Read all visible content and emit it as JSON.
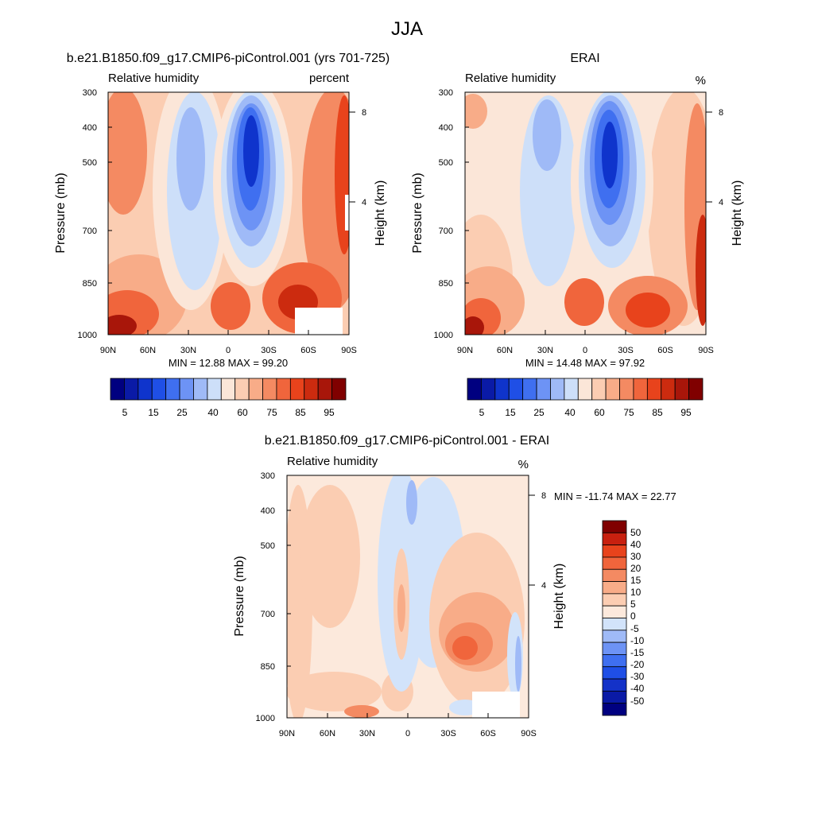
{
  "figure": {
    "title": "JJA"
  },
  "colors": {
    "abs_levels": [
      "#000080",
      "#0a1aa6",
      "#0f34cc",
      "#1f4fe6",
      "#3f6ff0",
      "#6d93f5",
      "#9fbaf7",
      "#cddff9",
      "#fbe6d8",
      "#fbcdb2",
      "#f8ac88",
      "#f48a62",
      "#f0653c",
      "#e8431c",
      "#cc2b0f",
      "#a8160a",
      "#800000"
    ],
    "diff_levels": [
      "#000080",
      "#0a1aa6",
      "#1432c8",
      "#1f4fe6",
      "#3f6ff0",
      "#6d93f5",
      "#9fbaf7",
      "#d2e3fa",
      "#fce9dc",
      "#fbcdb2",
      "#f8ac88",
      "#f48a62",
      "#f0653c",
      "#e8431c",
      "#c8200f",
      "#800000"
    ]
  },
  "chart_data": [
    {
      "type": "heatmap",
      "title": "b.e21.B1850.f09_g17.CMIP6-piControl.001 (yrs 701-725)",
      "subtitle_left": "Relative humidity",
      "subtitle_right": "percent",
      "xlabel": "",
      "ylabel": "Pressure (mb)",
      "ylabel_right": "Height (km)",
      "x_ticks": [
        "90N",
        "60N",
        "30N",
        "0",
        "30S",
        "60S",
        "90S"
      ],
      "x_range": [
        90,
        -90
      ],
      "y_ticks": [
        300,
        400,
        500,
        700,
        850,
        1000
      ],
      "y_range": [
        300,
        1000
      ],
      "y_log": true,
      "y_right_ticks": [
        8,
        4
      ],
      "min_max": "MIN =  12.88  MAX =  99.20",
      "colorbar_labels": [
        "5",
        "15",
        "25",
        "40",
        "60",
        "75",
        "85",
        "95"
      ],
      "colorbar_orientation": "horizontal"
    },
    {
      "type": "heatmap",
      "title": "ERAI",
      "subtitle_left": "Relative humidity",
      "subtitle_right": "%",
      "xlabel": "",
      "ylabel": "Pressure (mb)",
      "ylabel_right": "Height (km)",
      "x_ticks": [
        "90N",
        "60N",
        "30N",
        "0",
        "30S",
        "60S",
        "90S"
      ],
      "x_range": [
        90,
        -90
      ],
      "y_ticks": [
        300,
        400,
        500,
        700,
        850,
        1000
      ],
      "y_range": [
        300,
        1000
      ],
      "y_log": true,
      "y_right_ticks": [
        8,
        4
      ],
      "min_max": "MIN =  14.48  MAX =  97.92",
      "colorbar_labels": [
        "5",
        "15",
        "25",
        "40",
        "60",
        "75",
        "85",
        "95"
      ],
      "colorbar_orientation": "horizontal"
    },
    {
      "type": "heatmap",
      "title": "b.e21.B1850.f09_g17.CMIP6-piControl.001 - ERAI",
      "subtitle_left": "Relative humidity",
      "subtitle_right": "%",
      "xlabel": "",
      "ylabel": "Pressure (mb)",
      "ylabel_right": "Height (km)",
      "x_ticks": [
        "90N",
        "60N",
        "30N",
        "0",
        "30S",
        "60S",
        "90S"
      ],
      "x_range": [
        90,
        -90
      ],
      "y_ticks": [
        300,
        400,
        500,
        700,
        850,
        1000
      ],
      "y_range": [
        300,
        1000
      ],
      "y_log": true,
      "y_right_ticks": [
        8,
        4
      ],
      "min_max": "MIN = -11.74  MAX =  22.77",
      "colorbar_labels": [
        "50",
        "40",
        "30",
        "20",
        "15",
        "10",
        "5",
        "0",
        "-5",
        "-10",
        "-15",
        "-20",
        "-30",
        "-40",
        "-50"
      ],
      "colorbar_orientation": "vertical"
    }
  ]
}
